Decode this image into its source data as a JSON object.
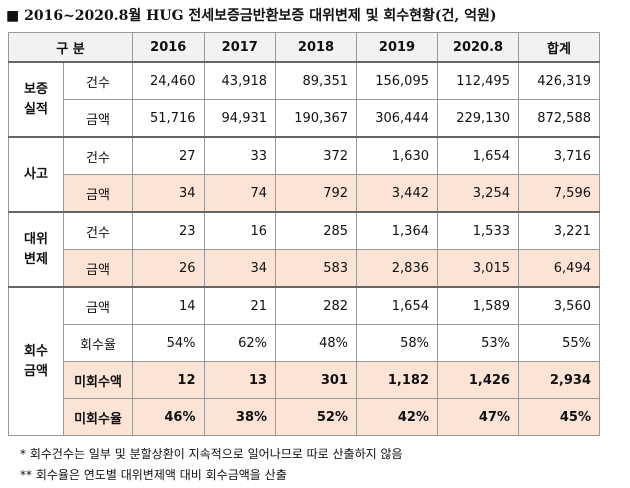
{
  "title": "■ 2016~2020.8월 HUG 전세보증금반환보증 대위변제 및 회수현황(건, 억원)",
  "table": {
    "header": [
      "구 분",
      "2016",
      "2017",
      "2018",
      "2019",
      "2020.8",
      "합계"
    ],
    "groups": [
      {
        "label_lines": [
          "보증",
          "실적"
        ],
        "rows": [
          {
            "label": "건수",
            "cells": [
              "24,460",
              "43,918",
              "89,351",
              "156,095",
              "112,495",
              "426,319"
            ]
          },
          {
            "label": "금액",
            "cells": [
              "51,716",
              "94,931",
              "190,367",
              "306,444",
              "229,130",
              "872,588"
            ]
          }
        ]
      },
      {
        "label_lines": [
          "사고"
        ],
        "rows": [
          {
            "label": "건수",
            "cells": [
              "27",
              "33",
              "372",
              "1,630",
              "1,654",
              "3,716"
            ]
          },
          {
            "label": "금액",
            "cells": [
              "34",
              "74",
              "792",
              "3,442",
              "3,254",
              "7,596"
            ],
            "highlight": true
          }
        ]
      },
      {
        "label_lines": [
          "대위",
          "변제"
        ],
        "rows": [
          {
            "label": "건수",
            "cells": [
              "23",
              "16",
              "285",
              "1,364",
              "1,533",
              "3,221"
            ]
          },
          {
            "label": "금액",
            "cells": [
              "26",
              "34",
              "583",
              "2,836",
              "3,015",
              "6,494"
            ],
            "highlight": true
          }
        ]
      },
      {
        "label_lines": [
          "회수",
          "금액"
        ],
        "rows": [
          {
            "label": "금액",
            "cells": [
              "14",
              "21",
              "282",
              "1,654",
              "1,589",
              "3,560"
            ]
          },
          {
            "label": "회수율",
            "cells": [
              "54%",
              "62%",
              "48%",
              "58%",
              "53%",
              "55%"
            ]
          },
          {
            "label": "미회수액",
            "cells": [
              "12",
              "13",
              "301",
              "1,182",
              "1,426",
              "2,934"
            ],
            "highlight": true,
            "bold": true
          },
          {
            "label": "미회수율",
            "cells": [
              "46%",
              "38%",
              "52%",
              "42%",
              "47%",
              "45%"
            ],
            "highlight": true,
            "bold": true
          }
        ]
      }
    ]
  },
  "notes": [
    "* 회수건수는 일부 및 분할상환이 지속적으로 일어나므로 따로 산출하지 않음",
    "** 회수율은 연도별 대위변제액 대비 회수금액을 산출"
  ]
}
